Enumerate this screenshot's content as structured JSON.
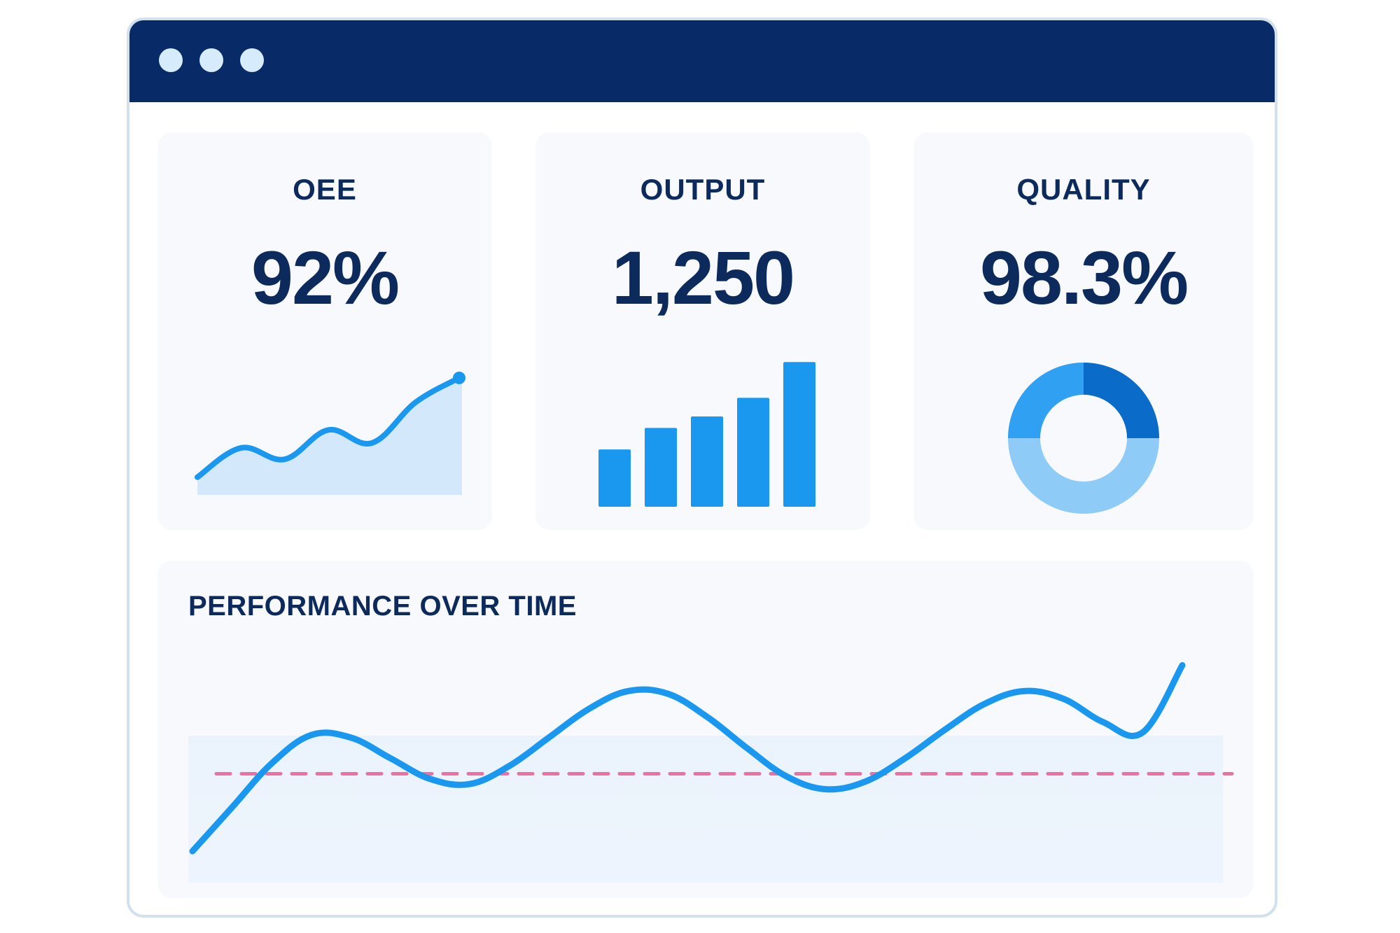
{
  "window": {
    "titlebar_color": "#082a66",
    "dot_color": "#d6ebfb"
  },
  "kpis": [
    {
      "title": "OEE",
      "value": "92%",
      "visual": "area-sparkline"
    },
    {
      "title": "OUTPUT",
      "value": "1,250",
      "visual": "bar-sparkline"
    },
    {
      "title": "QUALITY",
      "value": "98.3%",
      "visual": "donut"
    }
  ],
  "performance": {
    "title": "PERFORMANCE OVER TIME"
  },
  "colors": {
    "accent": "#1a98f0",
    "accent_light": "#d3e9fb",
    "navy": "#0d2a5c",
    "donut_dark": "#0a6bc8",
    "donut_mid": "#2fa0f2",
    "donut_light": "#8fcbf7",
    "target_line": "#ee6fa2"
  },
  "chart_data": [
    {
      "type": "area",
      "x": [
        1,
        2,
        3,
        4,
        5,
        6,
        7
      ],
      "values": [
        1,
        2.8,
        2.1,
        3.9,
        3.1,
        5.6,
        7.1
      ],
      "title": "",
      "xlabel": "",
      "ylabel": "",
      "ylim": [
        0,
        8
      ],
      "grid": false,
      "legend": "none"
    },
    {
      "type": "bar",
      "categories": [
        "1",
        "2",
        "3",
        "4",
        "5"
      ],
      "values": [
        4,
        5.5,
        6.3,
        7.6,
        10.1
      ],
      "title": "",
      "xlabel": "",
      "ylabel": "",
      "ylim": [
        0,
        10.5
      ],
      "grid": false,
      "legend": "none"
    },
    {
      "type": "pie",
      "categories": [
        "segment-1",
        "segment-2",
        "segment-3"
      ],
      "values": [
        25,
        50,
        25
      ],
      "title": "",
      "legend": "none"
    },
    {
      "type": "line",
      "x": [
        0,
        1,
        2,
        3,
        4,
        5,
        6,
        7,
        8,
        9,
        10,
        11,
        12,
        13,
        14,
        15,
        16,
        17,
        18,
        19,
        20,
        21,
        22,
        23,
        24,
        25
      ],
      "series": [
        {
          "values": [
            1.0,
            2.7,
            4.4,
            5.5,
            5.4,
            4.6,
            3.8,
            3.6,
            4.3,
            5.4,
            6.5,
            7.2,
            7.1,
            6.2,
            5.0,
            3.9,
            3.4,
            3.7,
            4.6,
            5.7,
            6.7,
            7.2,
            6.9,
            6.0,
            5.6,
            8.2
          ]
        }
      ],
      "reference_line": 4.0,
      "title": "",
      "xlabel": "",
      "ylabel": "",
      "ylim": [
        0,
        9
      ],
      "grid": false,
      "legend": "none"
    }
  ]
}
